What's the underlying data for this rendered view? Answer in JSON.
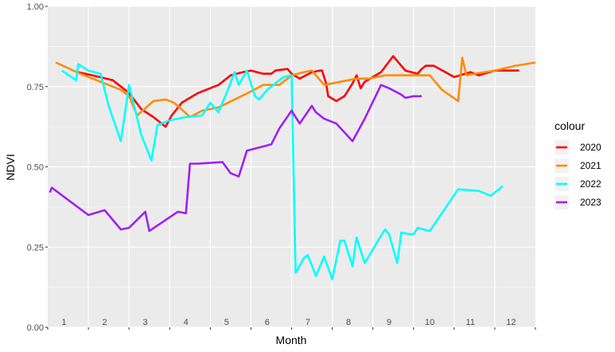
{
  "chart_data": {
    "type": "line",
    "xlabel": "Month",
    "ylabel": "NDVI",
    "xlim": [
      0,
      12
    ],
    "ylim": [
      0,
      1
    ],
    "y_ticks": [
      0.0,
      0.25,
      0.5,
      0.75,
      1.0
    ],
    "y_tick_labels": [
      "0.00",
      "0.25",
      "0.50",
      "0.75",
      "1.00"
    ],
    "month_labels": [
      "1",
      "2",
      "3",
      "4",
      "5",
      "6",
      "7",
      "8",
      "9",
      "10",
      "11",
      "12"
    ],
    "grid": true,
    "legend": {
      "title": "colour",
      "position": "right"
    },
    "series": [
      {
        "name": "2020",
        "color": "#ff0000",
        "x": [
          0.75,
          1.1,
          1.6,
          2.0,
          2.3,
          2.6,
          2.9,
          3.05,
          3.3,
          3.7,
          4.2,
          4.5,
          4.8,
          5.0,
          5.3,
          5.5,
          5.6,
          5.9,
          6.0,
          6.2,
          6.5,
          6.7,
          6.75,
          6.85,
          6.9,
          7.1,
          7.3,
          7.5,
          7.6,
          7.7,
          7.8,
          8.2,
          8.5,
          8.8,
          9.1,
          9.2,
          9.3,
          9.5,
          10.0,
          10.4,
          10.6,
          11.0,
          11.6
        ],
        "y": [
          0.795,
          0.785,
          0.77,
          0.73,
          0.68,
          0.655,
          0.625,
          0.66,
          0.7,
          0.73,
          0.755,
          0.785,
          0.795,
          0.8,
          0.79,
          0.79,
          0.8,
          0.805,
          0.79,
          0.775,
          0.795,
          0.8,
          0.8,
          0.76,
          0.72,
          0.705,
          0.72,
          0.76,
          0.785,
          0.745,
          0.765,
          0.795,
          0.845,
          0.8,
          0.79,
          0.805,
          0.815,
          0.815,
          0.78,
          0.795,
          0.785,
          0.8,
          0.8
        ]
      },
      {
        "name": "2021",
        "color": "#ff8c00",
        "x": [
          0.2,
          0.8,
          1.5,
          1.8,
          2.0,
          2.2,
          2.6,
          2.9,
          3.0,
          3.1,
          3.2,
          3.5,
          3.8,
          4.2,
          4.6,
          5.0,
          5.3,
          5.7,
          6.0,
          6.3,
          6.5,
          6.8,
          7.2,
          7.6,
          7.9,
          8.3,
          8.6,
          9.0,
          9.4,
          9.7,
          10.1,
          10.2,
          10.3,
          10.5,
          11.0,
          11.5,
          12.0
        ],
        "y": [
          0.825,
          0.79,
          0.755,
          0.74,
          0.72,
          0.66,
          0.705,
          0.71,
          0.705,
          0.7,
          0.69,
          0.655,
          0.675,
          0.685,
          0.71,
          0.735,
          0.755,
          0.755,
          0.785,
          0.795,
          0.8,
          0.755,
          0.765,
          0.775,
          0.775,
          0.785,
          0.785,
          0.785,
          0.785,
          0.74,
          0.705,
          0.84,
          0.785,
          0.79,
          0.8,
          0.815,
          0.825
        ]
      },
      {
        "name": "2022",
        "color": "#00ffff",
        "x": [
          0.35,
          0.7,
          0.75,
          1.0,
          1.3,
          1.5,
          1.8,
          2.0,
          2.3,
          2.55,
          2.7,
          3.0,
          3.4,
          3.8,
          4.0,
          4.2,
          4.4,
          4.6,
          4.7,
          4.9,
          5.1,
          5.2,
          5.4,
          5.6,
          5.8,
          6.0,
          6.1,
          6.15,
          6.3,
          6.4,
          6.6,
          6.8,
          7.0,
          7.2,
          7.3,
          7.5,
          7.6,
          7.8,
          8.2,
          8.3,
          8.4,
          8.6,
          8.7,
          8.9,
          9.0,
          9.1,
          9.4,
          10.1,
          10.6,
          10.9,
          11.2
        ],
        "y": [
          0.8,
          0.77,
          0.82,
          0.8,
          0.79,
          0.69,
          0.58,
          0.755,
          0.6,
          0.52,
          0.63,
          0.645,
          0.655,
          0.66,
          0.7,
          0.67,
          0.73,
          0.795,
          0.755,
          0.8,
          0.72,
          0.71,
          0.74,
          0.76,
          0.78,
          0.785,
          0.17,
          0.18,
          0.215,
          0.225,
          0.16,
          0.22,
          0.15,
          0.27,
          0.27,
          0.19,
          0.28,
          0.2,
          0.285,
          0.305,
          0.29,
          0.2,
          0.295,
          0.29,
          0.29,
          0.31,
          0.3,
          0.43,
          0.425,
          0.41,
          0.44
        ]
      },
      {
        "name": "2023",
        "color": "#a020f0",
        "x": [
          0.05,
          0.1,
          1.0,
          1.4,
          1.8,
          2.0,
          2.4,
          2.5,
          3.2,
          3.4,
          3.5,
          3.7,
          4.3,
          4.5,
          4.7,
          4.9,
          5.5,
          5.7,
          6.0,
          6.2,
          6.5,
          6.6,
          6.8,
          7.1,
          7.5,
          7.8,
          8.2,
          8.4,
          8.7,
          8.8,
          9.0,
          9.2
        ],
        "y": [
          0.42,
          0.435,
          0.35,
          0.365,
          0.305,
          0.31,
          0.36,
          0.3,
          0.36,
          0.355,
          0.51,
          0.51,
          0.515,
          0.48,
          0.47,
          0.55,
          0.57,
          0.62,
          0.675,
          0.635,
          0.69,
          0.67,
          0.65,
          0.635,
          0.58,
          0.65,
          0.755,
          0.745,
          0.725,
          0.715,
          0.72,
          0.72
        ]
      }
    ]
  }
}
